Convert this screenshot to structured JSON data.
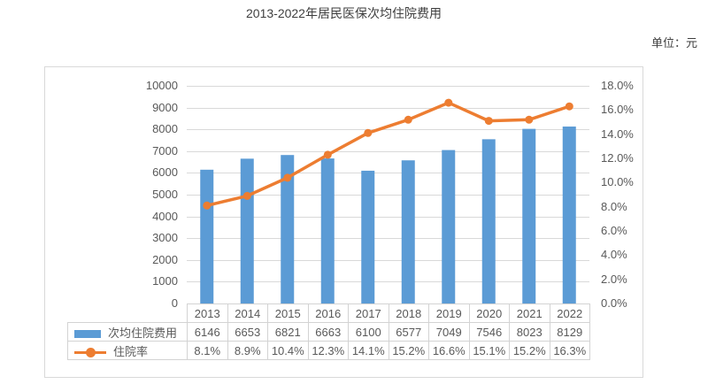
{
  "page": {
    "title": "2013-2022年居民医保次均住院费用",
    "unit_label": "单位：元"
  },
  "chart_data": {
    "type": "combo-bar-line",
    "title": "2013-2022年居民医保次均住院费用",
    "unit": "单位：元",
    "categories": [
      "2013",
      "2014",
      "2015",
      "2016",
      "2017",
      "2018",
      "2019",
      "2020",
      "2021",
      "2022"
    ],
    "series": [
      {
        "name": "次均住院费用",
        "type": "bar",
        "axis": "left",
        "color": "#5B9BD5",
        "values": [
          6146,
          6653,
          6821,
          6663,
          6100,
          6577,
          7049,
          7546,
          8023,
          8129
        ],
        "display": [
          "6146",
          "6653",
          "6821",
          "6663",
          "6100",
          "6577",
          "7049",
          "7546",
          "8023",
          "8129"
        ]
      },
      {
        "name": "住院率",
        "type": "line",
        "axis": "right",
        "color": "#ED7D31",
        "values": [
          8.1,
          8.9,
          10.4,
          12.3,
          14.1,
          15.2,
          16.6,
          15.1,
          15.2,
          16.3
        ],
        "display": [
          "8.1%",
          "8.9%",
          "10.4%",
          "12.3%",
          "14.1%",
          "15.2%",
          "16.6%",
          "15.1%",
          "15.2%",
          "16.3%"
        ]
      }
    ],
    "left_axis": {
      "min": 0,
      "max": 10000,
      "step": 1000,
      "ticks_top_to_bottom": [
        "10000",
        "9000",
        "8000",
        "7000",
        "6000",
        "5000",
        "4000",
        "3000",
        "2000",
        "1000",
        "0"
      ]
    },
    "right_axis": {
      "min": 0,
      "max": 18,
      "step": 2,
      "ticks_top_to_bottom": [
        "18.0%",
        "16.0%",
        "14.0%",
        "12.0%",
        "10.0%",
        "8.0%",
        "6.0%",
        "4.0%",
        "2.0%",
        "0.0%"
      ]
    },
    "grid": true,
    "legend_position": "data-table-left",
    "colors": {
      "gridline": "#d9d9d9",
      "table_border": "#d3d3d3",
      "tick_text": "#595959",
      "title_text": "#3f3f3f"
    }
  }
}
